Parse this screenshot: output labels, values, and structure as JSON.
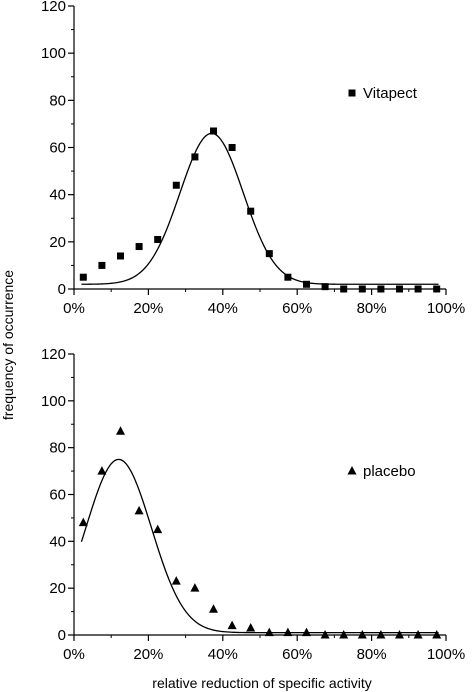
{
  "shared": {
    "ylabel": "frequency of occurrence",
    "xlabel": "relative reduction of specific activity"
  },
  "chart_data": [
    {
      "type": "scatter",
      "series_name": "Vitapect",
      "marker": "square",
      "x_ticks": [
        "0%",
        "20%",
        "40%",
        "60%",
        "80%",
        "100%"
      ],
      "y_ticks": [
        "0",
        "20",
        "40",
        "60",
        "80",
        "100",
        "120"
      ],
      "xlim": [
        0,
        100
      ],
      "ylim": [
        0,
        120
      ],
      "points": [
        [
          2.5,
          5
        ],
        [
          7.5,
          10
        ],
        [
          12.5,
          14
        ],
        [
          17.5,
          18
        ],
        [
          22.5,
          21
        ],
        [
          27.5,
          44
        ],
        [
          32.5,
          56
        ],
        [
          37.5,
          67
        ],
        [
          42.5,
          60
        ],
        [
          47.5,
          33
        ],
        [
          52.5,
          15
        ],
        [
          57.5,
          5
        ],
        [
          62.5,
          2
        ],
        [
          67.5,
          1
        ],
        [
          72.5,
          0
        ],
        [
          77.5,
          0
        ],
        [
          82.5,
          0
        ],
        [
          87.5,
          0
        ],
        [
          92.5,
          0
        ],
        [
          97.5,
          0
        ]
      ],
      "fit_curve": {
        "type": "gaussian",
        "baseline": 2,
        "amplitude": 64,
        "center": 37,
        "sigma": 8.5,
        "x_range": [
          2,
          98
        ]
      }
    },
    {
      "type": "scatter",
      "series_name": "placebo",
      "marker": "triangle",
      "x_ticks": [
        "0%",
        "20%",
        "40%",
        "60%",
        "80%",
        "100%"
      ],
      "y_ticks": [
        "0",
        "20",
        "40",
        "60",
        "80",
        "100",
        "120"
      ],
      "xlim": [
        0,
        100
      ],
      "ylim": [
        0,
        120
      ],
      "points": [
        [
          2.5,
          48
        ],
        [
          7.5,
          70
        ],
        [
          12.5,
          87
        ],
        [
          17.5,
          53
        ],
        [
          22.5,
          45
        ],
        [
          27.5,
          23
        ],
        [
          32.5,
          20
        ],
        [
          37.5,
          11
        ],
        [
          42.5,
          4
        ],
        [
          47.5,
          3
        ],
        [
          52.5,
          1
        ],
        [
          57.5,
          1
        ],
        [
          62.5,
          1
        ],
        [
          67.5,
          0
        ],
        [
          72.5,
          0
        ],
        [
          77.5,
          0
        ],
        [
          82.5,
          0
        ],
        [
          87.5,
          0
        ],
        [
          92.5,
          0
        ],
        [
          97.5,
          0
        ]
      ],
      "fit_curve": {
        "type": "gaussian",
        "baseline": 1,
        "amplitude": 74,
        "center": 12,
        "sigma": 8.8,
        "x_range": [
          2,
          98
        ]
      }
    }
  ]
}
